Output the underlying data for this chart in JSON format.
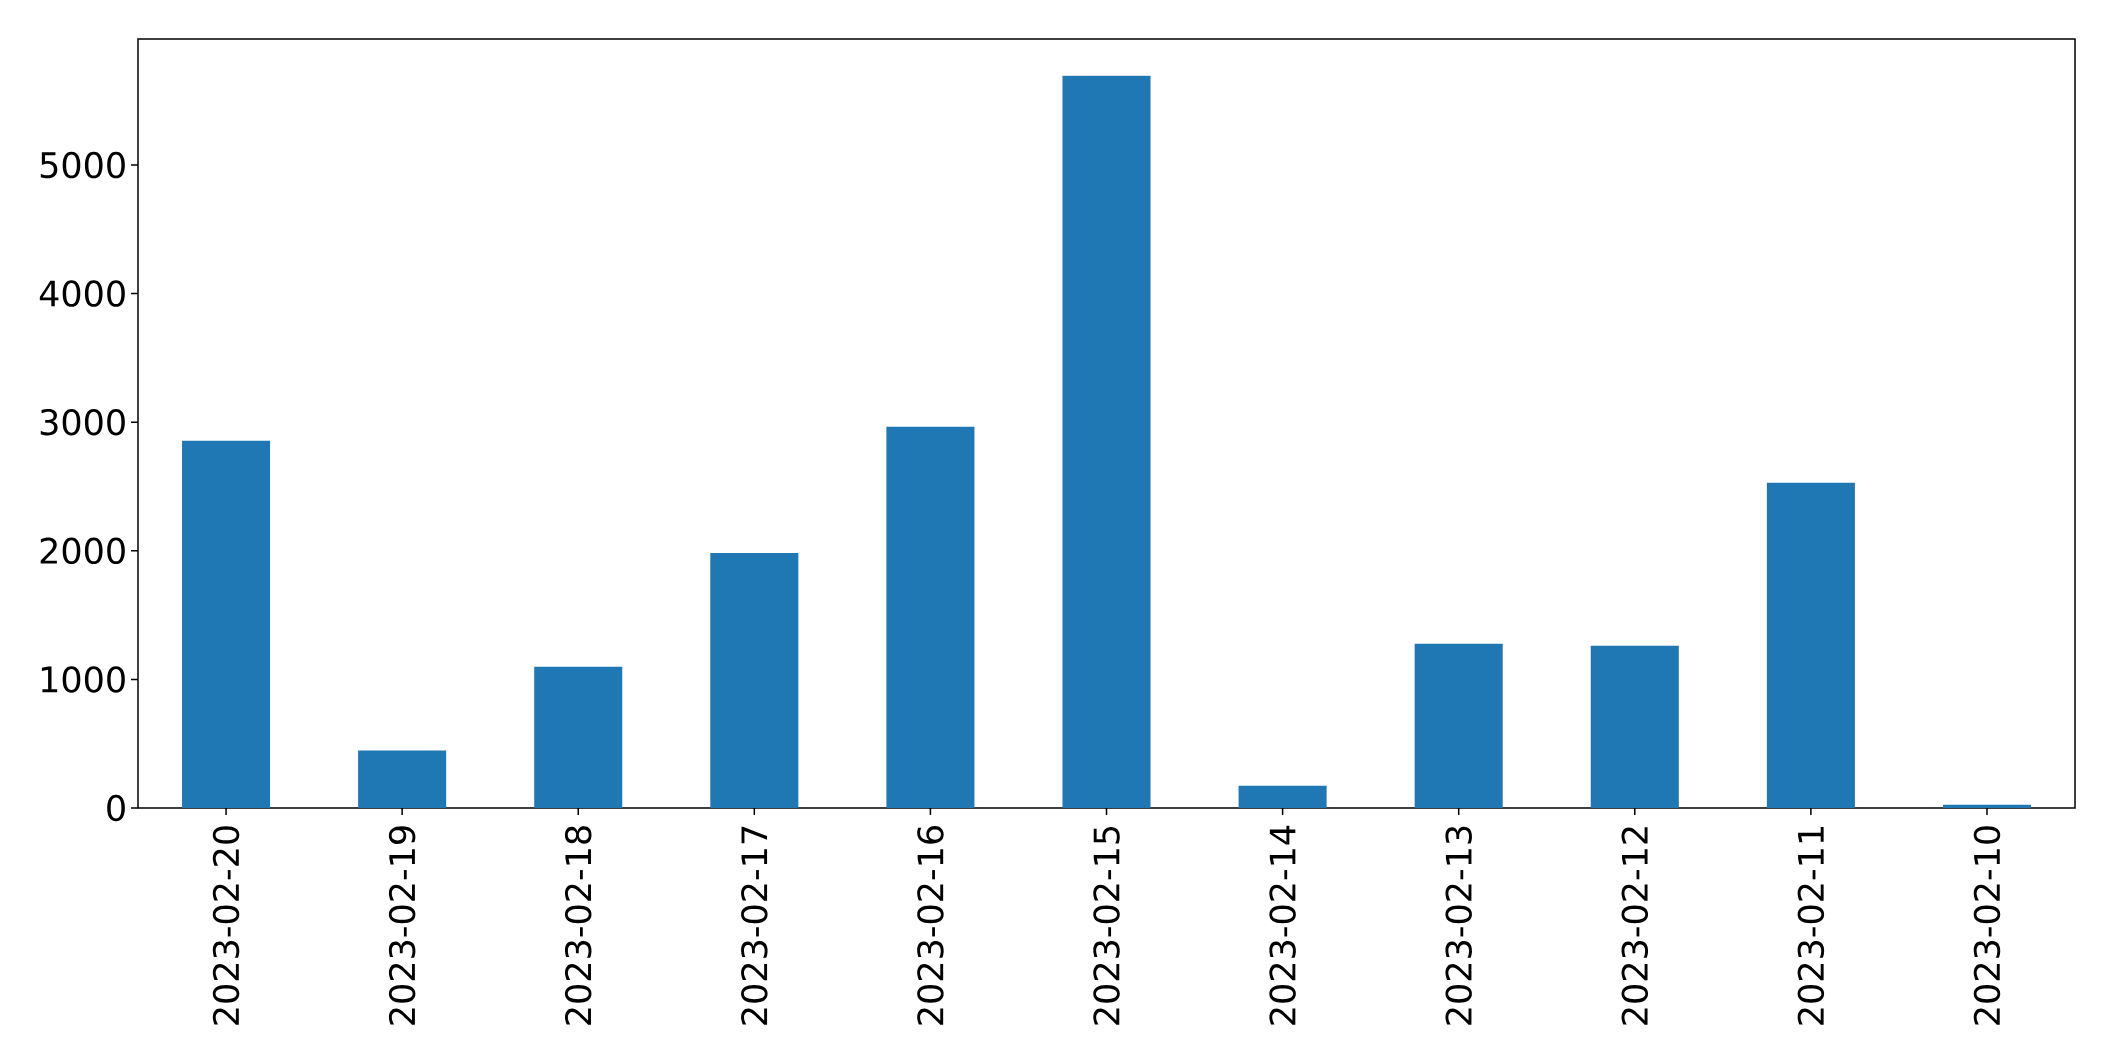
{
  "chart_data": {
    "type": "bar",
    "categories": [
      "2023-02-20",
      "2023-02-19",
      "2023-02-18",
      "2023-02-17",
      "2023-02-16",
      "2023-02-15",
      "2023-02-14",
      "2023-02-13",
      "2023-02-12",
      "2023-02-11",
      "2023-02-10"
    ],
    "values": [
      2855,
      447,
      1099,
      1982,
      2965,
      5694,
      173,
      1278,
      1262,
      2529,
      26
    ],
    "color": "#1f77b4",
    "ylim": [
      0,
      5980
    ],
    "yticks": [
      0,
      1000,
      2000,
      3000,
      4000,
      5000
    ]
  }
}
